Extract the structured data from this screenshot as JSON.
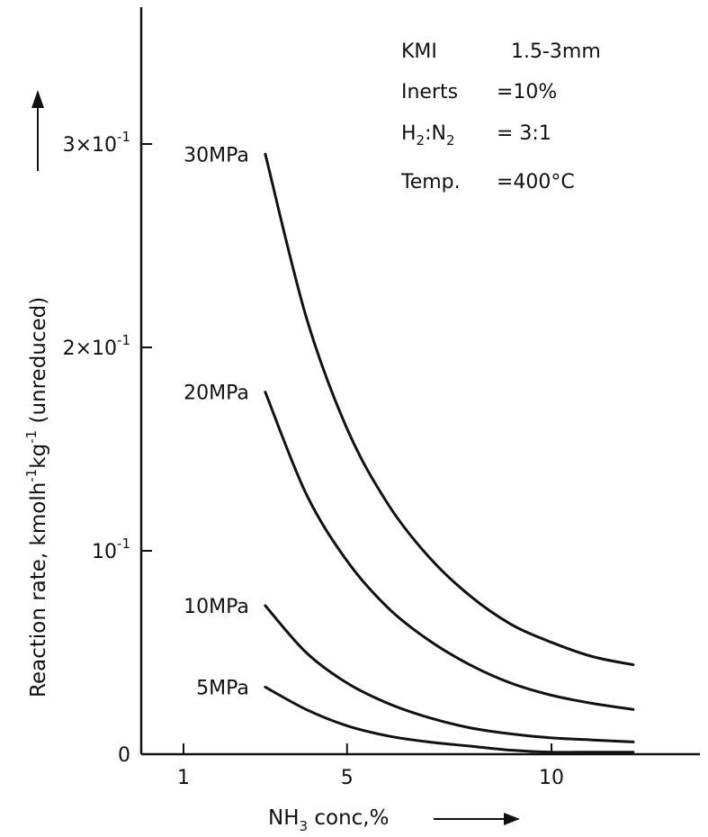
{
  "chart_data": {
    "type": "line",
    "xlabel": {
      "main": "NH",
      "sub": "3",
      "rest": " conc,%"
    },
    "ylabel": {
      "prefix": "Reaction rate, kmolh",
      "sup1": "-1",
      "mid": "kg",
      "sup2": "-1",
      "suffix": " (unreduced)"
    },
    "x_ticks": [
      1,
      5,
      10
    ],
    "y_ticks": [
      {
        "value": 0,
        "label": "0"
      },
      {
        "value": 0.1,
        "base": "10",
        "exp": "-1"
      },
      {
        "value": 0.2,
        "base": "2×10",
        "exp": "-1"
      },
      {
        "value": 0.3,
        "base": "3×10",
        "exp": "-1"
      }
    ],
    "xlim": [
      0,
      14
    ],
    "ylim": [
      0,
      0.36
    ],
    "grid": false,
    "legend": "inline-left-labels",
    "annotations": [
      {
        "key": "KMI",
        "value": "1.5-3mm"
      },
      {
        "key": "Inerts",
        "value": "=10%"
      },
      {
        "key": "H2:N2",
        "key_parts": [
          "H",
          "2",
          ":N",
          "2"
        ],
        "value": "= 3:1"
      },
      {
        "key": "Temp.",
        "value": "=400°C"
      }
    ],
    "x": [
      3,
      4,
      5,
      6,
      7,
      8,
      9,
      10,
      11,
      12
    ],
    "series": [
      {
        "name": "30MPa",
        "values": [
          0.295,
          0.215,
          0.16,
          0.123,
          0.097,
          0.078,
          0.064,
          0.055,
          0.048,
          0.044
        ]
      },
      {
        "name": "20MPa",
        "values": [
          0.178,
          0.128,
          0.095,
          0.072,
          0.056,
          0.044,
          0.035,
          0.029,
          0.025,
          0.022
        ]
      },
      {
        "name": "10MPa",
        "values": [
          0.073,
          0.05,
          0.035,
          0.025,
          0.018,
          0.013,
          0.01,
          0.008,
          0.007,
          0.006
        ]
      },
      {
        "name": "5MPa",
        "values": [
          0.033,
          0.022,
          0.014,
          0.009,
          0.006,
          0.004,
          0.002,
          0.001,
          0.001,
          0.001
        ]
      }
    ],
    "colors": {
      "line": "#111111",
      "axis": "#111111",
      "background": "#ffffff"
    }
  }
}
